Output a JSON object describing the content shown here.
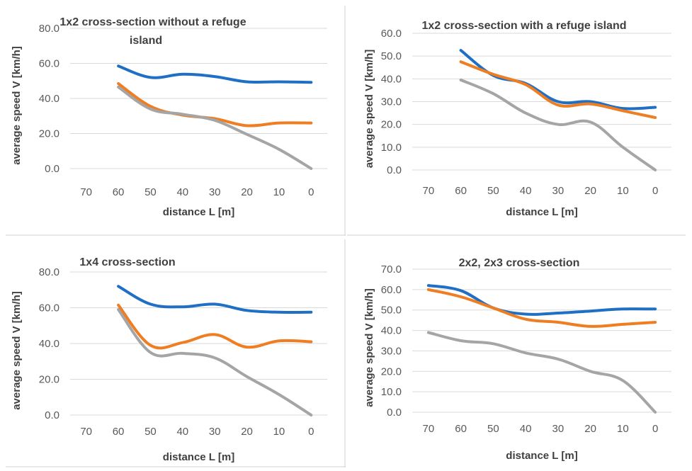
{
  "colors": {
    "series1": "#1f6fc5",
    "series2": "#ef7d22",
    "series3": "#a5a5a5",
    "grid": "#d9d9d9",
    "frame": "#d0d0d0"
  },
  "chart_data": [
    {
      "type": "line",
      "title": [
        "1x2 cross-section without a refuge",
        "island"
      ],
      "xlabel": "distance L [m]",
      "ylabel": "average speed V [km/h]",
      "categories": [
        "70",
        "60",
        "50",
        "40",
        "30",
        "20",
        "10",
        "0"
      ],
      "y_ticks": [
        "0.0",
        "20.0",
        "40.0",
        "60.0",
        "80.0"
      ],
      "ylim": [
        0,
        80
      ],
      "grid": "horizontal",
      "series": [
        {
          "color": "#1f6fc5",
          "values": [
            null,
            58.5,
            52.0,
            53.8,
            52.5,
            49.5,
            49.5,
            49.2
          ]
        },
        {
          "color": "#ef7d22",
          "values": [
            null,
            48.5,
            35.5,
            30.5,
            28.5,
            24.5,
            26.0,
            26.0
          ]
        },
        {
          "color": "#a5a5a5",
          "values": [
            null,
            46.5,
            34.0,
            31.0,
            27.5,
            19.5,
            11.0,
            0.0
          ]
        }
      ]
    },
    {
      "type": "line",
      "title": [
        "1x2 cross-section with a refuge island"
      ],
      "xlabel": "distance L [m]",
      "ylabel": "average speed V [km/h]",
      "categories": [
        "70",
        "60",
        "50",
        "40",
        "30",
        "20",
        "10",
        "0"
      ],
      "y_ticks": [
        "0.0",
        "10.0",
        "20.0",
        "30.0",
        "40.0",
        "50.0",
        "60.0"
      ],
      "ylim": [
        0,
        60
      ],
      "grid": "horizontal",
      "series": [
        {
          "color": "#1f6fc5",
          "values": [
            null,
            52.5,
            41.5,
            38.0,
            30.0,
            30.0,
            27.0,
            27.5
          ]
        },
        {
          "color": "#ef7d22",
          "values": [
            null,
            47.5,
            42.0,
            37.5,
            28.5,
            29.0,
            26.0,
            23.0
          ]
        },
        {
          "color": "#a5a5a5",
          "values": [
            null,
            39.5,
            33.5,
            25.0,
            20.0,
            21.0,
            10.0,
            0.0
          ]
        }
      ]
    },
    {
      "type": "line",
      "title": [
        "1x4 cross-section"
      ],
      "xlabel": "distance L [m]",
      "ylabel": "average speed V [km/h]",
      "categories": [
        "70",
        "60",
        "50",
        "40",
        "30",
        "20",
        "10",
        "0"
      ],
      "y_ticks": [
        "0.0",
        "20.0",
        "40.0",
        "60.0",
        "80.0"
      ],
      "ylim": [
        0,
        80
      ],
      "grid": "horizontal",
      "series": [
        {
          "color": "#1f6fc5",
          "values": [
            null,
            72.0,
            62.0,
            60.5,
            62.0,
            58.5,
            57.5,
            57.5
          ]
        },
        {
          "color": "#ef7d22",
          "values": [
            null,
            61.5,
            39.0,
            40.5,
            45.0,
            38.0,
            41.5,
            41.0
          ]
        },
        {
          "color": "#a5a5a5",
          "values": [
            null,
            59.0,
            35.0,
            34.5,
            32.0,
            21.5,
            11.5,
            0.0
          ]
        }
      ]
    },
    {
      "type": "line",
      "title": [
        "2x2, 2x3 cross-section"
      ],
      "xlabel": "distance L [m]",
      "ylabel": "average speed V [km/h]",
      "categories": [
        "70",
        "60",
        "50",
        "40",
        "30",
        "20",
        "10",
        "0"
      ],
      "y_ticks": [
        "0.0",
        "10.0",
        "20.0",
        "30.0",
        "40.0",
        "50.0",
        "60.0",
        "70.0"
      ],
      "ylim": [
        0,
        70
      ],
      "grid": "horizontal",
      "series": [
        {
          "color": "#1f6fc5",
          "values": [
            62.0,
            59.5,
            51.0,
            48.0,
            48.5,
            49.5,
            50.5,
            50.5
          ]
        },
        {
          "color": "#ef7d22",
          "values": [
            60.0,
            56.5,
            51.0,
            45.5,
            44.0,
            42.0,
            43.0,
            44.0
          ]
        },
        {
          "color": "#a5a5a5",
          "values": [
            39.0,
            35.0,
            33.5,
            29.0,
            26.0,
            20.0,
            15.5,
            0.0
          ]
        }
      ]
    }
  ]
}
